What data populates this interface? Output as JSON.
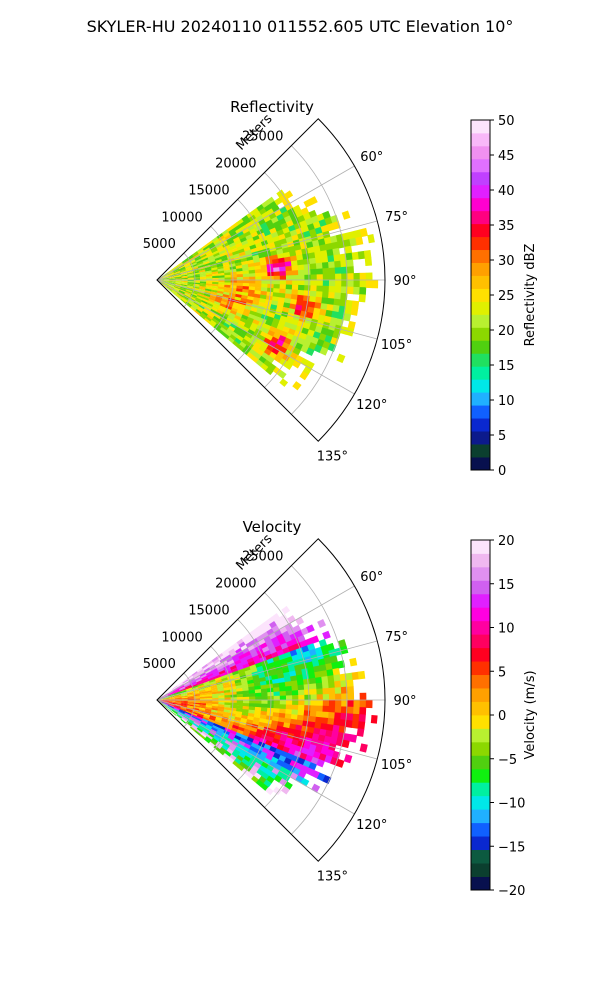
{
  "figure": {
    "suptitle": "SKYLER-HU  20240110  011552.605 UTC Elevation 10°"
  },
  "chart_data": [
    {
      "type": "heatmap",
      "title": "Reflectivity",
      "projection": "polar sector",
      "theta_range_deg": [
        45,
        135
      ],
      "theta_ticks": [
        "60°",
        "75°",
        "90°",
        "105°",
        "120°",
        "135°"
      ],
      "theta_tick_values": [
        60,
        75,
        90,
        105,
        120,
        135
      ],
      "r_label": "Meters",
      "r_ticks": [
        "5000",
        "10000",
        "15000",
        "20000",
        "25000"
      ],
      "r_tick_values": [
        5000,
        10000,
        15000,
        20000,
        25000
      ],
      "rmax": 30000,
      "data_extent_deg": [
        54,
        130
      ],
      "colorbar": {
        "label": "Reflectivity dBZ",
        "min": 0,
        "max": 50,
        "ticks": [
          "0",
          "5",
          "10",
          "15",
          "20",
          "25",
          "30",
          "35",
          "40",
          "45",
          "50"
        ],
        "tick_values": [
          0,
          5,
          10,
          15,
          20,
          25,
          30,
          35,
          40,
          45,
          50
        ],
        "colors": [
          "#08104e",
          "#0b3f2f",
          "#0c1a8c",
          "#0a28d0",
          "#1060ff",
          "#20b0ff",
          "#00e8e8",
          "#00f0a0",
          "#20e060",
          "#50d010",
          "#8cd800",
          "#b8f030",
          "#e0f000",
          "#ffe000",
          "#ffc000",
          "#ffa000",
          "#ff7000",
          "#ff3000",
          "#ff0020",
          "#ff0080",
          "#ff00d0",
          "#e020ff",
          "#c040ff",
          "#e070ff",
          "#f090f0",
          "#f8b8f8",
          "#fce4fc"
        ]
      }
    },
    {
      "type": "heatmap",
      "title": "Velocity",
      "projection": "polar sector",
      "theta_range_deg": [
        45,
        135
      ],
      "theta_ticks": [
        "60°",
        "75°",
        "90°",
        "105°",
        "120°",
        "135°"
      ],
      "theta_tick_values": [
        60,
        75,
        90,
        105,
        120,
        135
      ],
      "r_label": "Meters",
      "r_ticks": [
        "5000",
        "10000",
        "15000",
        "20000",
        "25000"
      ],
      "r_tick_values": [
        5000,
        10000,
        15000,
        20000,
        25000
      ],
      "rmax": 30000,
      "data_extent_deg": [
        54,
        130
      ],
      "colorbar": {
        "label": "Velocity (m/s)",
        "min": -20,
        "max": 20,
        "ticks": [
          "−20",
          "−15",
          "−10",
          "−5",
          "0",
          "5",
          "10",
          "15",
          "20"
        ],
        "tick_values": [
          -20,
          -15,
          -10,
          -5,
          0,
          5,
          10,
          15,
          20
        ],
        "colors": [
          "#08104e",
          "#0b3f2f",
          "#0c5a40",
          "#0a28d0",
          "#1060ff",
          "#20b0ff",
          "#00e8e8",
          "#00f0a0",
          "#10f010",
          "#50d010",
          "#8cd800",
          "#b8f030",
          "#ffe000",
          "#ffc000",
          "#ffa000",
          "#ff7000",
          "#ff3000",
          "#ff0020",
          "#ff0060",
          "#ff00a0",
          "#ff00e0",
          "#e020ff",
          "#d060f0",
          "#e090f0",
          "#f0b8f0",
          "#fce4fc"
        ]
      }
    }
  ]
}
